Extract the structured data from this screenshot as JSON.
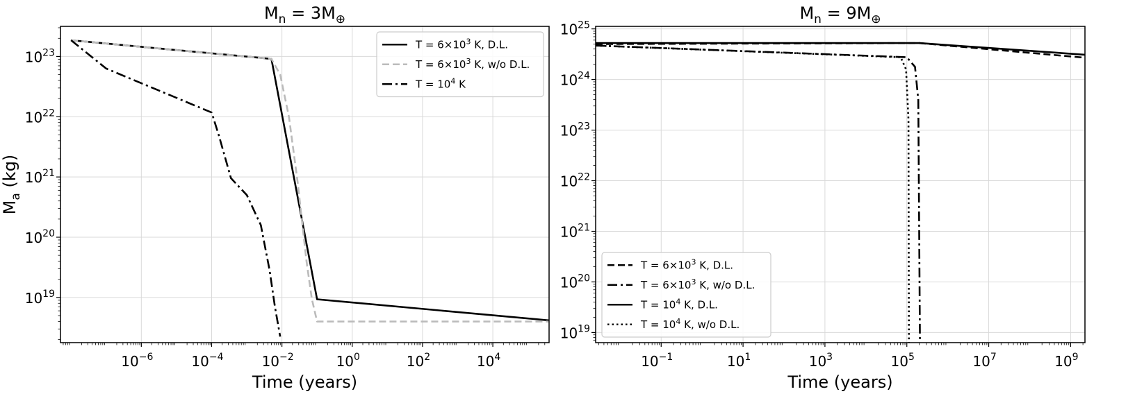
{
  "chart_data": [
    {
      "type": "line",
      "title": "M_n = 3M_⊕",
      "title_main": "M",
      "title_sub": "n",
      "title_rest": " = 3M",
      "title_sym": "⊕",
      "xlabel": "Time (years)",
      "ylabel_main": "M",
      "ylabel_sub": "a",
      "ylabel_rest": " (kg)",
      "xscale": "log",
      "yscale": "log",
      "xlim_log10": [
        -8.3,
        5.6
      ],
      "ylim_log10": [
        18.25,
        23.5
      ],
      "xticks": [
        {
          "exp": -6,
          "label": "10",
          "sup": "−6"
        },
        {
          "exp": -4,
          "label": "10",
          "sup": "−4"
        },
        {
          "exp": -2,
          "label": "10",
          "sup": "−2"
        },
        {
          "exp": 0,
          "label": "10",
          "sup": "0"
        },
        {
          "exp": 2,
          "label": "10",
          "sup": "2"
        },
        {
          "exp": 4,
          "label": "10",
          "sup": "4"
        }
      ],
      "yticks": [
        {
          "exp": 19,
          "label": "10",
          "sup": "19"
        },
        {
          "exp": 20,
          "label": "10",
          "sup": "20"
        },
        {
          "exp": 21,
          "label": "10",
          "sup": "21"
        },
        {
          "exp": 22,
          "label": "10",
          "sup": "22"
        },
        {
          "exp": 23,
          "label": "10",
          "sup": "23"
        }
      ],
      "grid": true,
      "legend_position": "top-right",
      "series": [
        {
          "name_main": "T = 6×10",
          "name_sup": "3",
          "name_rest": " K, D.L.",
          "style": "solid",
          "color": "#000000",
          "points": [
            [
              -8.0,
              23.27
            ],
            [
              -2.3,
              22.96
            ],
            [
              -1.0,
              18.97
            ],
            [
              5.6,
              18.62
            ]
          ]
        },
        {
          "name_main": "T = 6×10",
          "name_sup": "3",
          "name_rest": " K, w/o D.L.",
          "style": "dashed",
          "color": "#bbbbbb",
          "points": [
            [
              -8.0,
              23.27
            ],
            [
              -2.3,
              22.96
            ],
            [
              -2.05,
              22.7
            ],
            [
              -1.8,
              22.0
            ],
            [
              -1.55,
              20.9
            ],
            [
              -1.3,
              19.6
            ],
            [
              -1.15,
              18.98
            ],
            [
              -1.0,
              18.6
            ],
            [
              5.6,
              18.6
            ]
          ]
        },
        {
          "name_main": "T = 10",
          "name_sup": "4",
          "name_rest": " K",
          "style": "dashdot",
          "color": "#000000",
          "points": [
            [
              -8.0,
              23.27
            ],
            [
              -7.0,
              22.8
            ],
            [
              -4.0,
              22.07
            ],
            [
              -3.8,
              21.7
            ],
            [
              -3.45,
              20.98
            ],
            [
              -3.0,
              20.7
            ],
            [
              -2.6,
              20.2
            ],
            [
              -2.35,
              19.45
            ],
            [
              -2.2,
              18.85
            ],
            [
              -2.05,
              18.35
            ]
          ]
        }
      ]
    },
    {
      "type": "line",
      "title": "M_n = 9M_⊕",
      "title_main": "M",
      "title_sub": "n",
      "title_rest": " = 9M",
      "title_sym": "⊕",
      "xlabel": "Time (years)",
      "xscale": "log",
      "yscale": "log",
      "xlim_log10": [
        -2.6,
        9.35
      ],
      "ylim_log10": [
        18.8,
        25.05
      ],
      "xticks": [
        {
          "exp": -1,
          "label": "10",
          "sup": "−1"
        },
        {
          "exp": 1,
          "label": "10",
          "sup": "1"
        },
        {
          "exp": 3,
          "label": "10",
          "sup": "3"
        },
        {
          "exp": 5,
          "label": "10",
          "sup": "5"
        },
        {
          "exp": 7,
          "label": "10",
          "sup": "7"
        },
        {
          "exp": 9,
          "label": "10",
          "sup": "9"
        }
      ],
      "yticks": [
        {
          "exp": 19,
          "label": "10",
          "sup": "19"
        },
        {
          "exp": 20,
          "label": "10",
          "sup": "20"
        },
        {
          "exp": 21,
          "label": "10",
          "sup": "21"
        },
        {
          "exp": 22,
          "label": "10",
          "sup": "22"
        },
        {
          "exp": 23,
          "label": "10",
          "sup": "23"
        },
        {
          "exp": 24,
          "label": "10",
          "sup": "24"
        },
        {
          "exp": 25,
          "label": "10",
          "sup": "25"
        }
      ],
      "grid": true,
      "legend_position": "bottom-left",
      "series": [
        {
          "name_main": "T = 6×10",
          "name_sup": "3",
          "name_rest": " K, D.L.",
          "style": "dashed",
          "color": "#000000",
          "points": [
            [
              -2.6,
              24.7
            ],
            [
              5.3,
              24.72
            ],
            [
              9.35,
              24.43
            ]
          ]
        },
        {
          "name_main": "T = 6×10",
          "name_sup": "3",
          "name_rest": " K, w/o D.L.",
          "style": "dashdot",
          "color": "#000000",
          "points": [
            [
              -2.6,
              24.67
            ],
            [
              5.0,
              24.44
            ],
            [
              5.2,
              24.25
            ],
            [
              5.28,
              23.6
            ],
            [
              5.32,
              18.8
            ]
          ]
        },
        {
          "name_main": "T = 10",
          "name_sup": "4",
          "name_rest": " K, D.L.",
          "style": "solid",
          "color": "#000000",
          "points": [
            [
              -2.6,
              24.72
            ],
            [
              5.3,
              24.72
            ],
            [
              9.35,
              24.49
            ]
          ]
        },
        {
          "name_main": "T = 10",
          "name_sup": "4",
          "name_rest": " K, w/o D.L.",
          "style": "dotted",
          "color": "#000000",
          "points": [
            [
              -2.6,
              24.67
            ],
            [
              4.85,
              24.44
            ],
            [
              4.98,
              24.2
            ],
            [
              5.04,
              23.2
            ],
            [
              5.05,
              18.8
            ]
          ]
        }
      ]
    }
  ]
}
